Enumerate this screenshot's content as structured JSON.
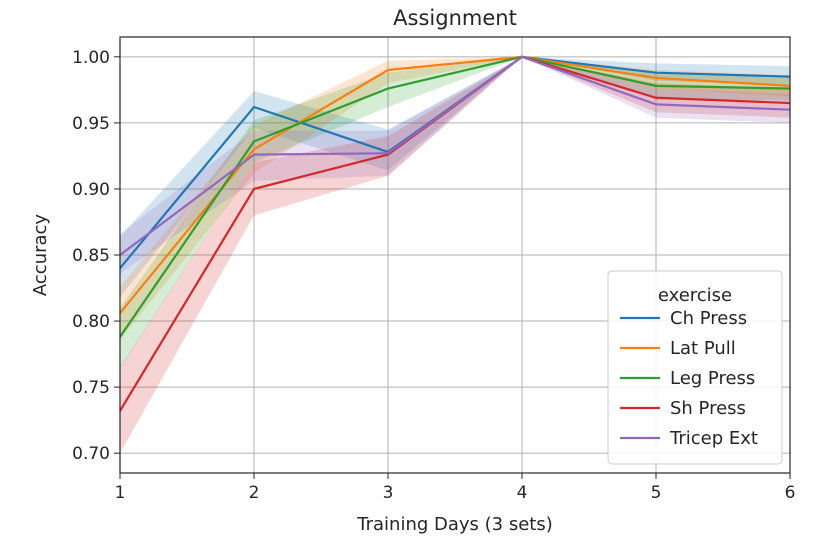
{
  "chart_data": {
    "type": "line",
    "title": "Assignment",
    "xlabel": "Training Days (3 sets)",
    "ylabel": "Accuracy",
    "xlim": [
      1,
      6
    ],
    "ylim": [
      0.685,
      1.015
    ],
    "x": [
      1,
      2,
      3,
      4,
      5,
      6
    ],
    "xticks": [
      "1",
      "2",
      "3",
      "4",
      "5",
      "6"
    ],
    "yticks": [
      "0.70",
      "0.75",
      "0.80",
      "0.85",
      "0.90",
      "0.95",
      "1.00"
    ],
    "grid": true,
    "legend": {
      "title": "exercise",
      "position": "lower-right"
    },
    "series": [
      {
        "name": "Ch Press",
        "color": "#1f77b4",
        "values": [
          0.84,
          0.962,
          0.928,
          1.0,
          0.988,
          0.985
        ],
        "lower": [
          0.818,
          0.946,
          0.914,
          1.0,
          0.982,
          0.978
        ],
        "upper": [
          0.864,
          0.974,
          0.945,
          1.0,
          0.995,
          0.993
        ]
      },
      {
        "name": "Lat Pull",
        "color": "#ff7f0e",
        "values": [
          0.806,
          0.93,
          0.99,
          1.0,
          0.984,
          0.978
        ],
        "lower": [
          0.786,
          0.912,
          0.98,
          1.0,
          0.976,
          0.97
        ],
        "upper": [
          0.826,
          0.948,
          0.997,
          1.0,
          0.99,
          0.986
        ]
      },
      {
        "name": "Leg Press",
        "color": "#2ca02c",
        "values": [
          0.788,
          0.936,
          0.976,
          1.0,
          0.978,
          0.976
        ],
        "lower": [
          0.764,
          0.92,
          0.962,
          1.0,
          0.968,
          0.967
        ],
        "upper": [
          0.81,
          0.952,
          0.988,
          1.0,
          0.987,
          0.984
        ]
      },
      {
        "name": "Sh Press",
        "color": "#d62728",
        "values": [
          0.732,
          0.9,
          0.926,
          1.0,
          0.969,
          0.965
        ],
        "lower": [
          0.7,
          0.88,
          0.91,
          1.0,
          0.958,
          0.954
        ],
        "upper": [
          0.765,
          0.92,
          0.94,
          1.0,
          0.98,
          0.976
        ]
      },
      {
        "name": "Tricep Ext",
        "color": "#9467bd",
        "values": [
          0.85,
          0.926,
          0.927,
          1.0,
          0.964,
          0.96
        ],
        "lower": [
          0.836,
          0.906,
          0.91,
          1.0,
          0.954,
          0.95
        ],
        "upper": [
          0.866,
          0.944,
          0.944,
          1.0,
          0.976,
          0.972
        ]
      }
    ]
  }
}
